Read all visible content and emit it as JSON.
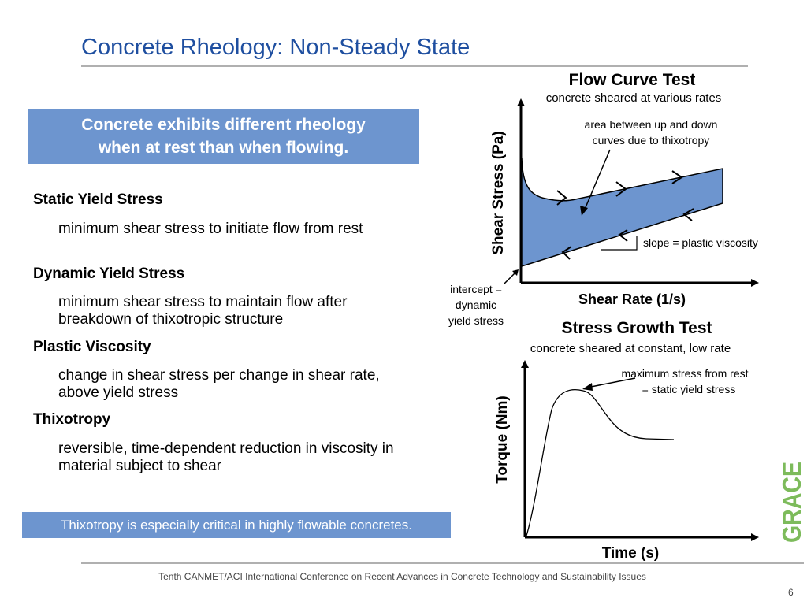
{
  "slide": {
    "title": "Concrete Rheology: Non-Steady State",
    "highlight": {
      "line1": "Concrete exhibits different rheology",
      "line2": "when at rest than when flowing."
    },
    "terms": [
      {
        "term": "Static Yield Stress",
        "definition": "minimum shear stress to initiate flow from rest"
      },
      {
        "term": "Dynamic Yield Stress",
        "definition": "minimum shear stress to maintain flow after breakdown of thixotropic structure"
      },
      {
        "term": "Plastic Viscosity",
        "definition": "change in shear stress per change in shear rate, above yield stress"
      },
      {
        "term": "Thixotropy",
        "definition": "reversible, time-dependent reduction in viscosity in material subject to shear"
      }
    ],
    "callout": "Thixotropy is especially critical in highly flowable concretes.",
    "footer": "Tenth CANMET/ACI International Conference on Recent Advances in Concrete Technology and Sustainability Issues",
    "page_number": "6",
    "logo_text": "GRACE",
    "colors": {
      "title": "#1f4fa0",
      "highlight": "#6d95cf",
      "fill": "#6d95cf",
      "logo": "#7dbb5b"
    }
  },
  "flow_curve": {
    "heading": "Flow Curve Test",
    "subheading": "concrete sheared at various rates",
    "ylabel": "Shear Stress (Pa)",
    "xlabel": "Shear Rate (1/s)",
    "annotation_area_line1": "area between up and down",
    "annotation_area_line2": "curves due to thixotropy",
    "annotation_slope": "slope = plastic viscosity",
    "annotation_intercept_line1": "intercept =",
    "annotation_intercept_line2": "dynamic",
    "annotation_intercept_line3": "yield stress"
  },
  "stress_growth": {
    "heading": "Stress Growth Test",
    "subheading": "concrete sheared at constant, low rate",
    "ylabel": "Torque (Nm)",
    "xlabel": "Time (s)",
    "annotation_line1": "maximum stress from rest",
    "annotation_line2": "= static yield stress"
  }
}
